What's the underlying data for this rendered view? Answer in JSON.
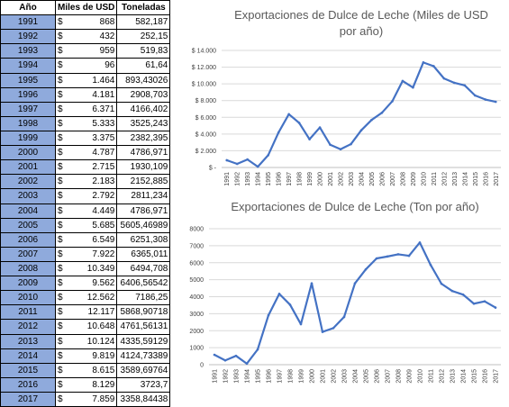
{
  "table": {
    "headers": [
      "Año",
      "Miles de USD",
      "Toneladas"
    ],
    "currency_symbol": "$",
    "rows": [
      [
        "1991",
        "868",
        "582,187"
      ],
      [
        "1992",
        "432",
        "252,15"
      ],
      [
        "1993",
        "959",
        "519,83"
      ],
      [
        "1994",
        "96",
        "61,64"
      ],
      [
        "1995",
        "1.464",
        "893,43026"
      ],
      [
        "1996",
        "4.181",
        "2908,703"
      ],
      [
        "1997",
        "6.371",
        "4166,402"
      ],
      [
        "1998",
        "5.333",
        "3525,243"
      ],
      [
        "1999",
        "3.375",
        "2382,395"
      ],
      [
        "2000",
        "4.787",
        "4786,971"
      ],
      [
        "2001",
        "2.715",
        "1930,109"
      ],
      [
        "2002",
        "2.183",
        "2152,885"
      ],
      [
        "2003",
        "2.792",
        "2811,234"
      ],
      [
        "2004",
        "4.449",
        "4786,971"
      ],
      [
        "2005",
        "5.685",
        "5605,46989"
      ],
      [
        "2006",
        "6.549",
        "6251,308"
      ],
      [
        "2007",
        "7.922",
        "6365,011"
      ],
      [
        "2008",
        "10.349",
        "6494,708"
      ],
      [
        "2009",
        "9.562",
        "6406,56542"
      ],
      [
        "2010",
        "12.562",
        "7186,25"
      ],
      [
        "2011",
        "12.117",
        "5868,90718"
      ],
      [
        "2012",
        "10.648",
        "4761,56131"
      ],
      [
        "2013",
        "10.124",
        "4335,59129"
      ],
      [
        "2014",
        "9.819",
        "4124,73389"
      ],
      [
        "2015",
        "8.615",
        "3589,69764"
      ],
      [
        "2016",
        "8.129",
        "3723,7"
      ],
      [
        "2017",
        "7.859",
        "3358,84438"
      ]
    ]
  },
  "colors": {
    "year_cell_bg": "#8faadc",
    "line": "#4472c4",
    "grid": "#d9d9d9"
  },
  "chart_data": [
    {
      "type": "line",
      "title": "Exportaciones de Dulce de Leche (Miles de USD por año)",
      "title_lines": [
        "Exportaciones de Dulce de Leche (Miles de USD",
        "por año)"
      ],
      "ylim": [
        0,
        14000
      ],
      "yticks": [
        0,
        2000,
        4000,
        6000,
        8000,
        10000,
        12000,
        14000
      ],
      "ytick_labels": [
        "$ -",
        "$ 2.000",
        "$ 4.000",
        "$ 6.000",
        "$ 8.000",
        "$ 10.000",
        "$ 12.000",
        "$ 14.000"
      ],
      "grid": true,
      "x": [
        "1991",
        "1992",
        "1993",
        "1994",
        "1995",
        "1996",
        "1997",
        "1998",
        "1999",
        "2000",
        "2001",
        "2002",
        "2003",
        "2004",
        "2005",
        "2006",
        "2007",
        "2008",
        "2009",
        "2010",
        "2011",
        "2012",
        "2013",
        "2014",
        "2015",
        "2016",
        "2017"
      ],
      "series": [
        {
          "values": [
            868,
            432,
            959,
            96,
            1464,
            4181,
            6371,
            5333,
            3375,
            4787,
            2715,
            2183,
            2792,
            4449,
            5685,
            6549,
            7922,
            10349,
            9562,
            12562,
            12117,
            10648,
            10124,
            9819,
            8615,
            8129,
            7859
          ]
        }
      ]
    },
    {
      "type": "line",
      "title": "Exportaciones de Dulce de Leche (Ton por año)",
      "title_lines": [
        "Exportaciones de Dulce de Leche (Ton por año)"
      ],
      "ylim": [
        0,
        8000
      ],
      "yticks": [
        0,
        1000,
        2000,
        3000,
        4000,
        5000,
        6000,
        7000,
        8000
      ],
      "ytick_labels": [
        "0",
        "1000",
        "2000",
        "3000",
        "4000",
        "5000",
        "6000",
        "7000",
        "8000"
      ],
      "grid": true,
      "x": [
        "1991",
        "1992",
        "1993",
        "1994",
        "1995",
        "1996",
        "1997",
        "1998",
        "1999",
        "2000",
        "2001",
        "2002",
        "2003",
        "2004",
        "2005",
        "2006",
        "2007",
        "2008",
        "2009",
        "2010",
        "2011",
        "2012",
        "2013",
        "2014",
        "2015",
        "2016",
        "2017"
      ],
      "series": [
        {
          "values": [
            582.187,
            252.15,
            519.83,
            61.64,
            893.43026,
            2908.703,
            4166.402,
            3525.243,
            2382.395,
            4786.971,
            1930.109,
            2152.885,
            2811.234,
            4786.971,
            5605.46989,
            6251.308,
            6365.011,
            6494.708,
            6406.56542,
            7186.25,
            5868.90718,
            4761.56131,
            4335.59129,
            4124.73389,
            3589.69764,
            3723.7,
            3358.84438
          ]
        }
      ]
    }
  ]
}
